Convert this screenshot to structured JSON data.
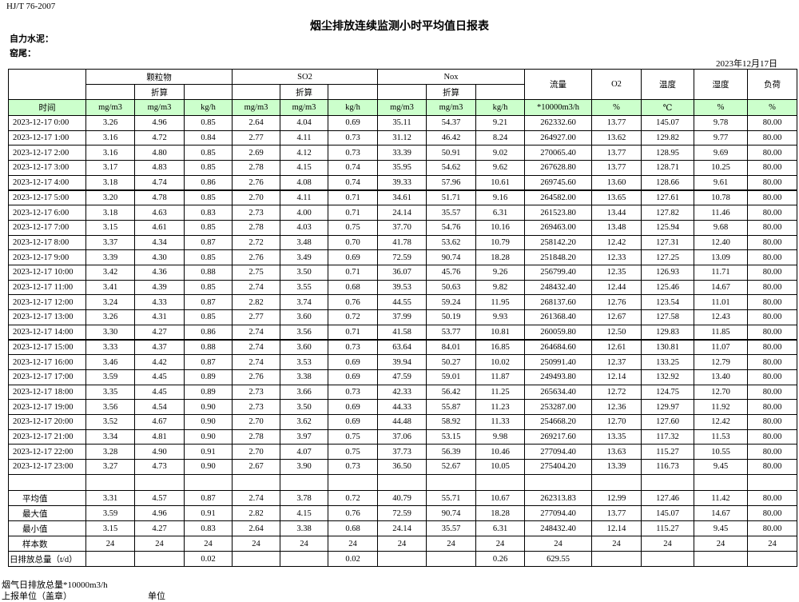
{
  "header": {
    "standard": "HJ/T  76-2007",
    "title": "烟尘排放连续监测小时平均值日报表",
    "company": "自力水泥：",
    "location": "窑尾：",
    "date": "2023年12月17日"
  },
  "table": {
    "time_header": "时间",
    "groups": [
      "颗粒物",
      "SO2",
      "Nox"
    ],
    "converted": [
      "折算",
      "折算",
      "折算"
    ],
    "single_headers": [
      "流量",
      "O2",
      "温度",
      "湿度",
      "负荷"
    ],
    "units": [
      "mg/m3",
      "mg/m3",
      "kg/h",
      "mg/m3",
      "mg/m3",
      "kg/h",
      "mg/m3",
      "mg/m3",
      "kg/h",
      "*10000m3/h",
      "%",
      "℃",
      "%",
      "%"
    ],
    "rows": [
      [
        "2023-12-17 0:00",
        "3.26",
        "4.96",
        "0.85",
        "2.64",
        "4.04",
        "0.69",
        "35.11",
        "54.37",
        "9.21",
        "262332.60",
        "13.77",
        "145.07",
        "9.78",
        "80.00"
      ],
      [
        "2023-12-17 1:00",
        "3.16",
        "4.72",
        "0.84",
        "2.77",
        "4.11",
        "0.73",
        "31.12",
        "46.42",
        "8.24",
        "264927.00",
        "13.62",
        "129.82",
        "9.77",
        "80.00"
      ],
      [
        "2023-12-17 2:00",
        "3.16",
        "4.80",
        "0.85",
        "2.69",
        "4.12",
        "0.73",
        "33.39",
        "50.91",
        "9.02",
        "270065.40",
        "13.77",
        "128.95",
        "9.69",
        "80.00"
      ],
      [
        "2023-12-17 3:00",
        "3.17",
        "4.83",
        "0.85",
        "2.78",
        "4.15",
        "0.74",
        "35.95",
        "54.62",
        "9.62",
        "267628.80",
        "13.77",
        "128.71",
        "10.25",
        "80.00"
      ],
      [
        "2023-12-17 4:00",
        "3.18",
        "4.74",
        "0.86",
        "2.76",
        "4.08",
        "0.74",
        "39.33",
        "57.96",
        "10.61",
        "269745.60",
        "13.60",
        "128.66",
        "9.61",
        "80.00"
      ],
      [
        "2023-12-17 5:00",
        "3.20",
        "4.78",
        "0.85",
        "2.70",
        "4.11",
        "0.71",
        "34.61",
        "51.71",
        "9.16",
        "264582.00",
        "13.65",
        "127.61",
        "10.78",
        "80.00"
      ],
      [
        "2023-12-17 6:00",
        "3.18",
        "4.63",
        "0.83",
        "2.73",
        "4.00",
        "0.71",
        "24.14",
        "35.57",
        "6.31",
        "261523.80",
        "13.44",
        "127.82",
        "11.46",
        "80.00"
      ],
      [
        "2023-12-17 7:00",
        "3.15",
        "4.61",
        "0.85",
        "2.78",
        "4.03",
        "0.75",
        "37.70",
        "54.76",
        "10.16",
        "269463.00",
        "13.48",
        "125.94",
        "9.68",
        "80.00"
      ],
      [
        "2023-12-17 8:00",
        "3.37",
        "4.34",
        "0.87",
        "2.72",
        "3.48",
        "0.70",
        "41.78",
        "53.62",
        "10.79",
        "258142.20",
        "12.42",
        "127.31",
        "12.40",
        "80.00"
      ],
      [
        "2023-12-17 9:00",
        "3.39",
        "4.30",
        "0.85",
        "2.76",
        "3.49",
        "0.69",
        "72.59",
        "90.74",
        "18.28",
        "251848.20",
        "12.33",
        "127.25",
        "13.09",
        "80.00"
      ],
      [
        "2023-12-17 10:00",
        "3.42",
        "4.36",
        "0.88",
        "2.75",
        "3.50",
        "0.71",
        "36.07",
        "45.76",
        "9.26",
        "256799.40",
        "12.35",
        "126.93",
        "11.71",
        "80.00"
      ],
      [
        "2023-12-17 11:00",
        "3.41",
        "4.39",
        "0.85",
        "2.74",
        "3.55",
        "0.68",
        "39.53",
        "50.63",
        "9.82",
        "248432.40",
        "12.44",
        "125.46",
        "14.67",
        "80.00"
      ],
      [
        "2023-12-17 12:00",
        "3.24",
        "4.33",
        "0.87",
        "2.82",
        "3.74",
        "0.76",
        "44.55",
        "59.24",
        "11.95",
        "268137.60",
        "12.76",
        "123.54",
        "11.01",
        "80.00"
      ],
      [
        "2023-12-17 13:00",
        "3.26",
        "4.31",
        "0.85",
        "2.77",
        "3.60",
        "0.72",
        "37.99",
        "50.19",
        "9.93",
        "261368.40",
        "12.67",
        "127.58",
        "12.43",
        "80.00"
      ],
      [
        "2023-12-17 14:00",
        "3.30",
        "4.27",
        "0.86",
        "2.74",
        "3.56",
        "0.71",
        "41.58",
        "53.77",
        "10.81",
        "260059.80",
        "12.50",
        "129.83",
        "11.85",
        "80.00"
      ],
      [
        "2023-12-17 15:00",
        "3.33",
        "4.37",
        "0.88",
        "2.74",
        "3.60",
        "0.73",
        "63.64",
        "84.01",
        "16.85",
        "264684.60",
        "12.61",
        "130.81",
        "11.07",
        "80.00"
      ],
      [
        "2023-12-17 16:00",
        "3.46",
        "4.42",
        "0.87",
        "2.74",
        "3.53",
        "0.69",
        "39.94",
        "50.27",
        "10.02",
        "250991.40",
        "12.37",
        "133.25",
        "12.79",
        "80.00"
      ],
      [
        "2023-12-17 17:00",
        "3.59",
        "4.45",
        "0.89",
        "2.76",
        "3.38",
        "0.69",
        "47.59",
        "59.01",
        "11.87",
        "249493.80",
        "12.14",
        "132.92",
        "13.40",
        "80.00"
      ],
      [
        "2023-12-17 18:00",
        "3.35",
        "4.45",
        "0.89",
        "2.73",
        "3.66",
        "0.73",
        "42.33",
        "56.42",
        "11.25",
        "265634.40",
        "12.72",
        "124.75",
        "12.70",
        "80.00"
      ],
      [
        "2023-12-17 19:00",
        "3.56",
        "4.54",
        "0.90",
        "2.73",
        "3.50",
        "0.69",
        "44.33",
        "55.87",
        "11.23",
        "253287.00",
        "12.36",
        "129.97",
        "11.92",
        "80.00"
      ],
      [
        "2023-12-17 20:00",
        "3.52",
        "4.67",
        "0.90",
        "2.70",
        "3.62",
        "0.69",
        "44.48",
        "58.92",
        "11.33",
        "254668.20",
        "12.70",
        "127.60",
        "12.42",
        "80.00"
      ],
      [
        "2023-12-17 21:00",
        "3.34",
        "4.81",
        "0.90",
        "2.78",
        "3.97",
        "0.75",
        "37.06",
        "53.15",
        "9.98",
        "269217.60",
        "13.35",
        "117.32",
        "11.53",
        "80.00"
      ],
      [
        "2023-12-17 22:00",
        "3.28",
        "4.90",
        "0.91",
        "2.70",
        "4.07",
        "0.75",
        "37.73",
        "56.39",
        "10.46",
        "277094.40",
        "13.63",
        "115.27",
        "10.55",
        "80.00"
      ],
      [
        "2023-12-17 23:00",
        "3.27",
        "4.73",
        "0.90",
        "2.67",
        "3.90",
        "0.73",
        "36.50",
        "52.67",
        "10.05",
        "275404.20",
        "13.39",
        "116.73",
        "9.45",
        "80.00"
      ]
    ],
    "summary": [
      [
        "平均值",
        "3.31",
        "4.57",
        "0.87",
        "2.74",
        "3.78",
        "0.72",
        "40.79",
        "55.71",
        "10.67",
        "262313.83",
        "12.99",
        "127.46",
        "11.42",
        "80.00"
      ],
      [
        "最大值",
        "3.59",
        "4.96",
        "0.91",
        "2.82",
        "4.15",
        "0.76",
        "72.59",
        "90.74",
        "18.28",
        "277094.40",
        "13.77",
        "145.07",
        "14.67",
        "80.00"
      ],
      [
        "最小值",
        "3.15",
        "4.27",
        "0.83",
        "2.64",
        "3.38",
        "0.68",
        "24.14",
        "35.57",
        "6.31",
        "248432.40",
        "12.14",
        "115.27",
        "9.45",
        "80.00"
      ],
      [
        "样本数",
        "24",
        "24",
        "24",
        "24",
        "24",
        "24",
        "24",
        "24",
        "24",
        "24",
        "24",
        "24",
        "24",
        "24"
      ],
      [
        "日排放总量（t/d）",
        null,
        null,
        "0.02",
        null,
        null,
        "0.02",
        null,
        null,
        "0.26",
        "629.55",
        null,
        null,
        null,
        null
      ]
    ]
  },
  "footer": {
    "flue_gas": "烟气日排放总量*10000m3/h",
    "reporter": "上报单位（盖章）",
    "unit": "单位"
  }
}
